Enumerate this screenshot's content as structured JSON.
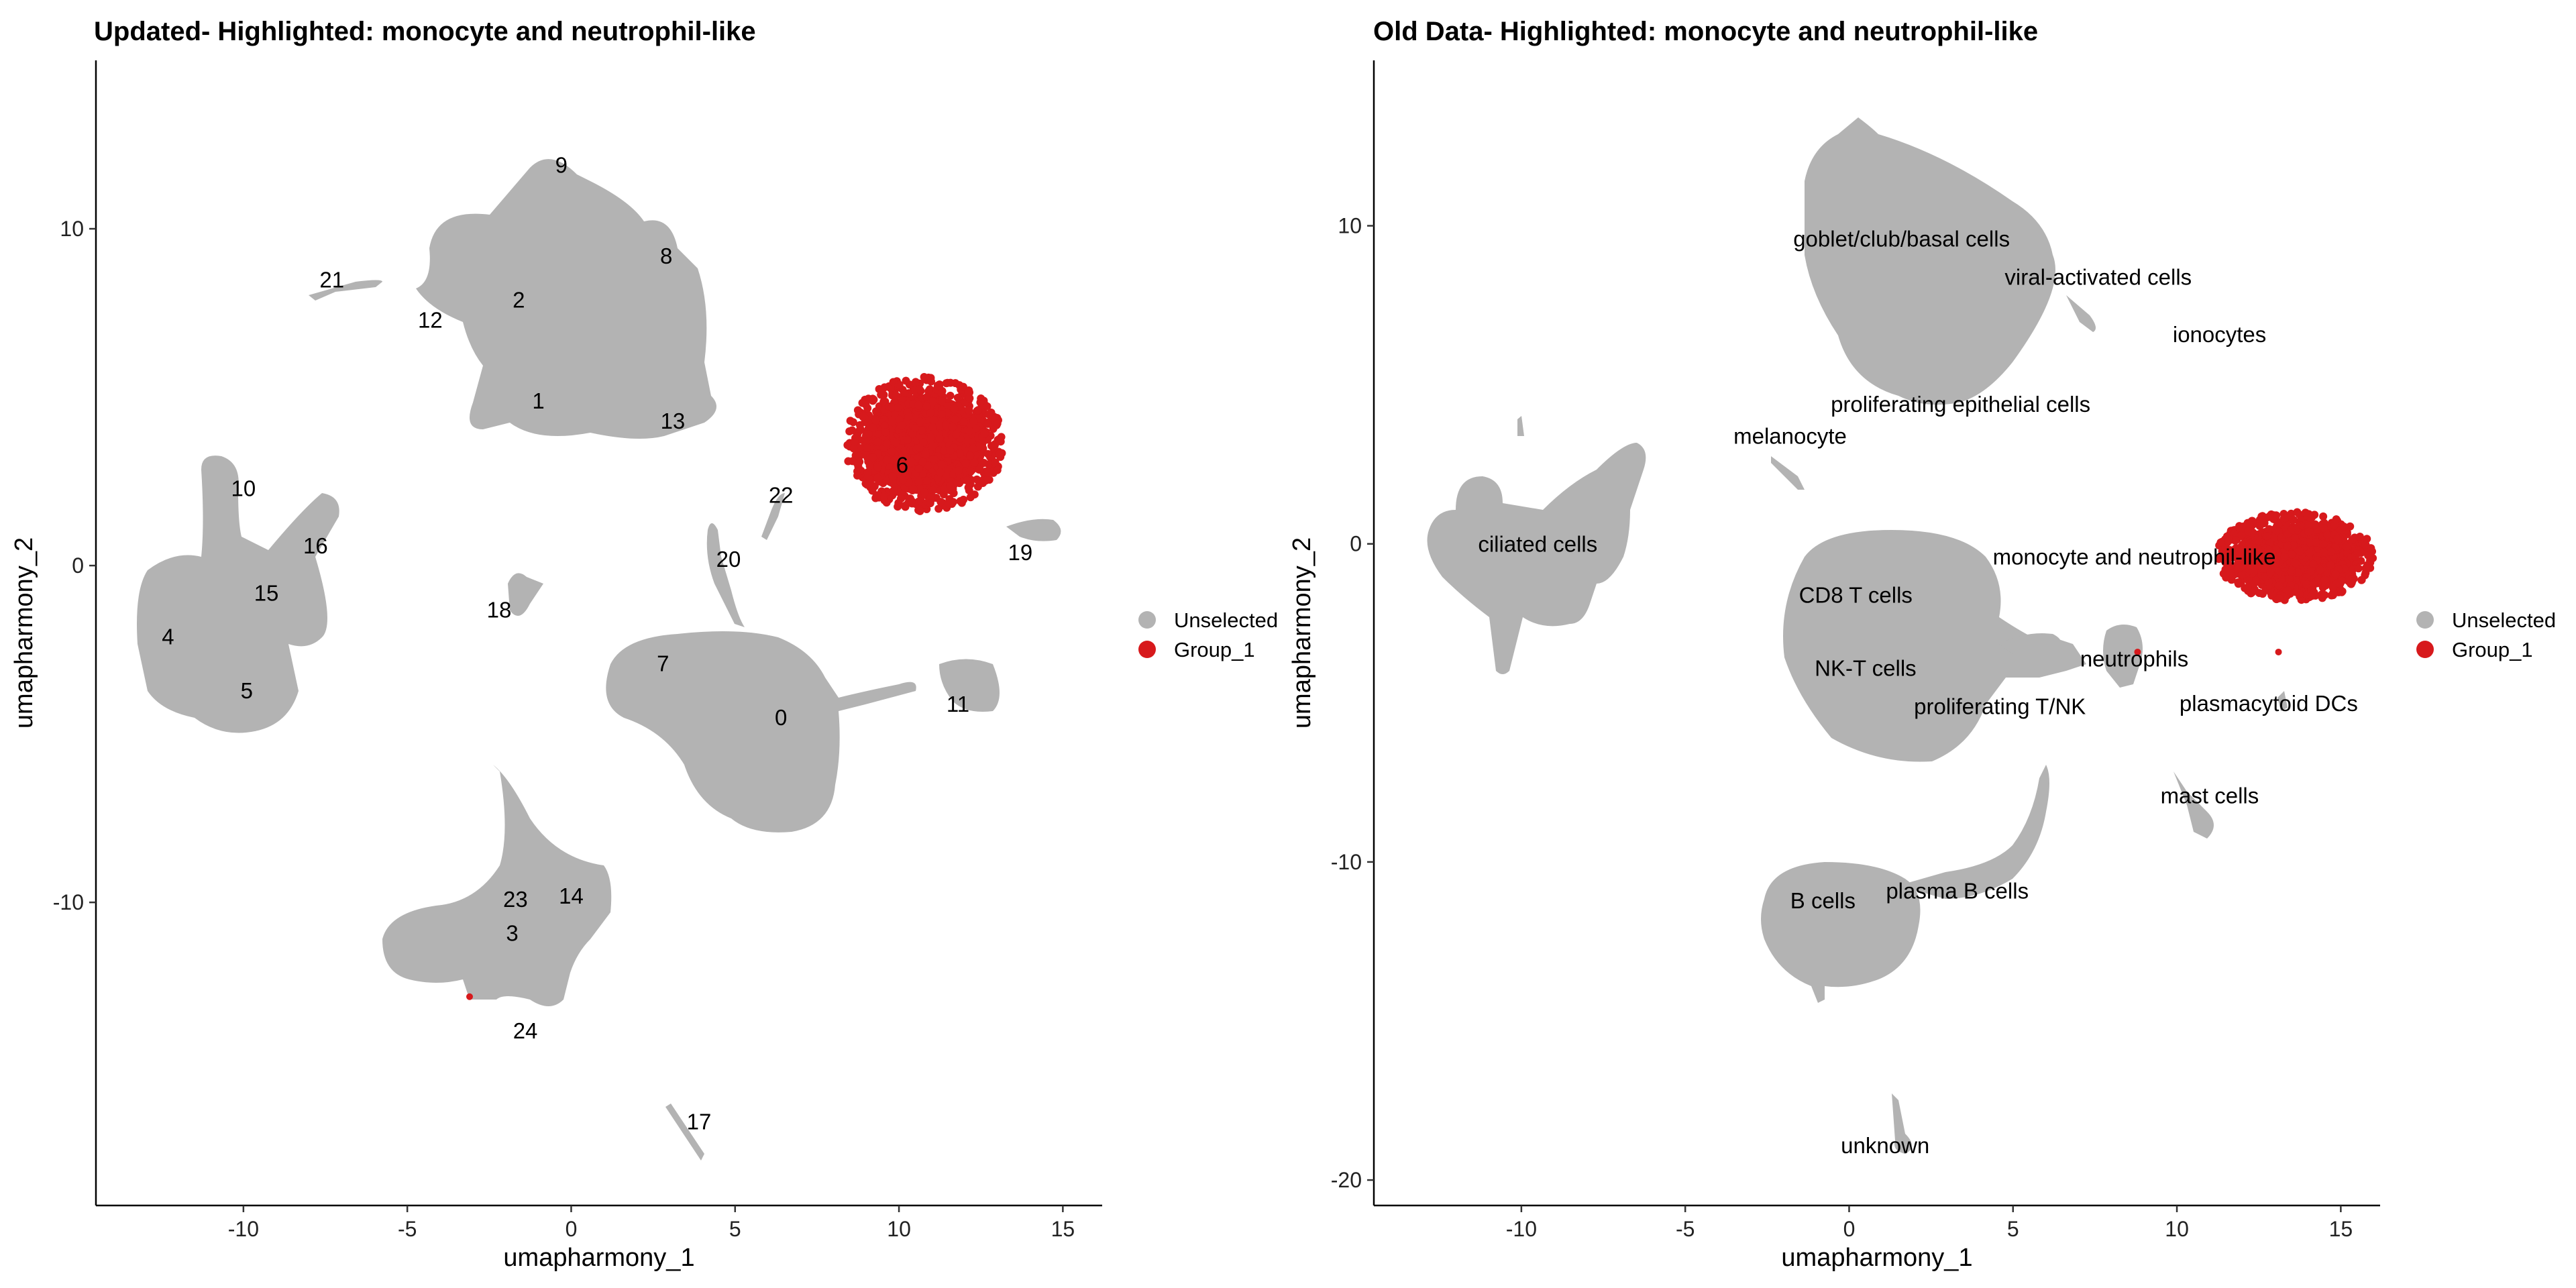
{
  "chart_data": [
    {
      "type": "scatter",
      "title": "Updated- Highlighted: monocyte and neutrophil-like",
      "xlabel": "umapharmony_1",
      "ylabel": "umapharmony_2",
      "xlim": [
        -14.5,
        16.2
      ],
      "ylim": [
        -19,
        15
      ],
      "xticks": [
        -10,
        -5,
        0,
        5,
        10,
        15
      ],
      "yticks": [
        -10,
        0,
        10
      ],
      "grid": false,
      "legend": {
        "position": "right",
        "entries": [
          {
            "label": "Unselected",
            "color": "#B3B3B3"
          },
          {
            "label": "Group_1",
            "color": "#D7191C"
          }
        ]
      },
      "cluster_labels": [
        {
          "text": "9",
          "x": -0.3,
          "y": 11.9
        },
        {
          "text": "8",
          "x": 2.9,
          "y": 9.2
        },
        {
          "text": "21",
          "x": -7.3,
          "y": 8.5
        },
        {
          "text": "2",
          "x": -1.6,
          "y": 7.9
        },
        {
          "text": "12",
          "x": -4.3,
          "y": 7.3
        },
        {
          "text": "1",
          "x": -1.0,
          "y": 4.9
        },
        {
          "text": "13",
          "x": 3.1,
          "y": 4.3
        },
        {
          "text": "6",
          "x": 10.1,
          "y": 3.0
        },
        {
          "text": "10",
          "x": -10.0,
          "y": 2.3
        },
        {
          "text": "22",
          "x": 6.4,
          "y": 2.1
        },
        {
          "text": "16",
          "x": -7.8,
          "y": 0.6
        },
        {
          "text": "19",
          "x": 13.7,
          "y": 0.4
        },
        {
          "text": "20",
          "x": 4.8,
          "y": 0.2
        },
        {
          "text": "15",
          "x": -9.3,
          "y": -0.8
        },
        {
          "text": "18",
          "x": -2.2,
          "y": -1.3
        },
        {
          "text": "4",
          "x": -12.3,
          "y": -2.1
        },
        {
          "text": "7",
          "x": 2.8,
          "y": -2.9
        },
        {
          "text": "5",
          "x": -9.9,
          "y": -3.7
        },
        {
          "text": "11",
          "x": 11.8,
          "y": -4.1
        },
        {
          "text": "0",
          "x": 6.4,
          "y": -4.5
        },
        {
          "text": "23",
          "x": -1.7,
          "y": -9.9
        },
        {
          "text": "14",
          "x": 0.0,
          "y": -9.8
        },
        {
          "text": "3",
          "x": -1.8,
          "y": -10.9
        },
        {
          "text": "24",
          "x": -1.4,
          "y": -13.8
        },
        {
          "text": "17",
          "x": 3.9,
          "y": -16.5
        }
      ],
      "highlighted": [
        {
          "group": "Group_1",
          "region": "cluster 6",
          "x_range": [
            8.3,
            13.2
          ],
          "y_range": [
            1.6,
            5.6
          ]
        },
        {
          "group": "Group_1",
          "region": "isolated cell",
          "x": -3.1,
          "y": -12.8
        }
      ]
    },
    {
      "type": "scatter",
      "title": "Old Data- Highlighted: monocyte and neutrophil-like",
      "xlabel": "umapharmony_1",
      "ylabel": "umapharmony_2",
      "xlim": [
        -14.5,
        16.2
      ],
      "ylim": [
        -20.8,
        15.2
      ],
      "xticks": [
        -10,
        -5,
        0,
        5,
        10,
        15
      ],
      "yticks": [
        -20,
        -10,
        0,
        10
      ],
      "grid": false,
      "legend": {
        "position": "right",
        "entries": [
          {
            "label": "Unselected",
            "color": "#B3B3B3"
          },
          {
            "label": "Group_1",
            "color": "#D7191C"
          }
        ]
      },
      "cluster_labels": [
        {
          "text": "goblet/club/basal cells",
          "x": 1.6,
          "y": 9.6
        },
        {
          "text": "viral-activated cells",
          "x": 7.6,
          "y": 8.4
        },
        {
          "text": "ionocytes",
          "x": 11.3,
          "y": 6.6
        },
        {
          "text": "proliferating epithelial cells",
          "x": 3.4,
          "y": 4.4
        },
        {
          "text": "melanocyte",
          "x": -1.8,
          "y": 3.4
        },
        {
          "text": "ciliated cells",
          "x": -9.5,
          "y": 0.0
        },
        {
          "text": "monocyte and neutrophil-like",
          "x": 8.7,
          "y": -0.4
        },
        {
          "text": "CD8 T cells",
          "x": 0.2,
          "y": -1.6
        },
        {
          "text": "neutrophils",
          "x": 8.7,
          "y": -3.6
        },
        {
          "text": "NK-T cells",
          "x": 0.5,
          "y": -3.9
        },
        {
          "text": "plasmacytoid DCs",
          "x": 12.8,
          "y": -5.0
        },
        {
          "text": "proliferating T/NK",
          "x": 4.6,
          "y": -5.1
        },
        {
          "text": "mast cells",
          "x": 11.0,
          "y": -7.9
        },
        {
          "text": "plasma B cells",
          "x": 3.3,
          "y": -10.9
        },
        {
          "text": "B cells",
          "x": -0.8,
          "y": -11.2
        },
        {
          "text": "unknown",
          "x": 1.1,
          "y": -18.9
        }
      ],
      "highlighted": [
        {
          "group": "Group_1",
          "region": "monocyte and neutrophil-like cluster",
          "x_range": [
            11.2,
            16.0
          ],
          "y_range": [
            -1.8,
            1.0
          ]
        },
        {
          "group": "Group_1",
          "region": "within neutrophils",
          "x": 8.8,
          "y": -3.4
        },
        {
          "group": "Group_1",
          "region": "near plasmacytoid DCs",
          "x": 13.1,
          "y": -3.4
        }
      ]
    }
  ]
}
